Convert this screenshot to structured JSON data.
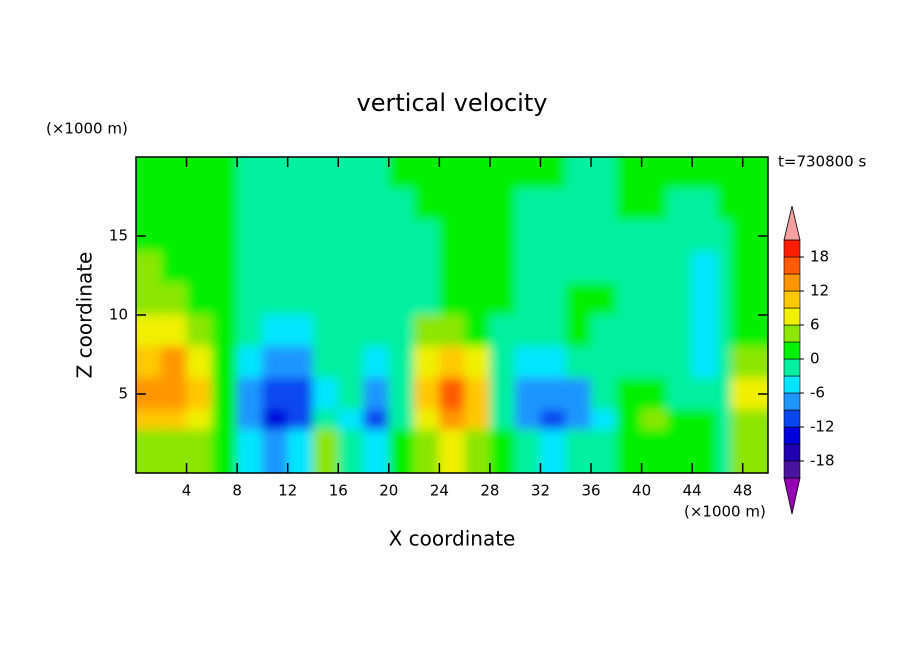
{
  "chart_data": {
    "type": "contour",
    "title": "vertical velocity",
    "annotation": "t=730800 s",
    "x_label": "X coordinate",
    "y_label": "Z coordinate",
    "x_unit": "(×1000 m)",
    "y_unit": "(×1000 m)",
    "xlim": [
      0,
      50
    ],
    "ylim": [
      0,
      20
    ],
    "xticks": [
      4,
      8,
      12,
      16,
      20,
      24,
      28,
      32,
      36,
      40,
      44,
      48
    ],
    "yticks": [
      5,
      10,
      15
    ],
    "x": [
      1,
      3,
      5,
      7,
      9,
      11,
      13,
      15,
      17,
      19,
      21,
      23,
      25,
      27,
      29,
      31,
      33,
      35,
      37,
      39,
      41,
      43,
      45,
      47,
      49
    ],
    "y": [
      19,
      17,
      15,
      13,
      11,
      9,
      7,
      5,
      3,
      1
    ],
    "values": [
      [
        1,
        1,
        1,
        1,
        -1,
        -1,
        -1,
        -1,
        -1,
        -1,
        1,
        1,
        1,
        1,
        1,
        1,
        1,
        -1,
        -1,
        1,
        1,
        1,
        1,
        1,
        1
      ],
      [
        1,
        1,
        1,
        1,
        -1,
        -1,
        -1,
        -1,
        -1,
        -1,
        -1,
        1,
        1,
        1,
        1,
        -1,
        -1,
        -1,
        -1,
        1,
        1,
        -1,
        -1,
        1,
        1
      ],
      [
        2,
        1,
        1,
        1,
        -1,
        -1,
        -1,
        -1,
        -1,
        -1,
        -1,
        -1,
        1,
        1,
        1,
        -1,
        -1,
        -1,
        -1,
        -1,
        -1,
        -1,
        -1,
        -1,
        1
      ],
      [
        4,
        2,
        1,
        1,
        -1,
        -1,
        -1,
        -1,
        -1,
        -1,
        -1,
        -1,
        1,
        1,
        1,
        -1,
        -1,
        -1,
        -1,
        -1,
        -1,
        -1,
        -4,
        -1,
        1
      ],
      [
        5,
        4,
        2,
        1,
        -1,
        -1,
        -2,
        -1,
        -1,
        -1,
        -1,
        -1,
        1,
        1,
        1,
        -1,
        -1,
        1,
        2,
        -1,
        -1,
        -1,
        -4,
        -1,
        1
      ],
      [
        7,
        8,
        5,
        1,
        -2,
        -4,
        -4,
        -2,
        -1,
        -2,
        -1,
        4,
        5,
        1,
        -1,
        -2,
        -1,
        1,
        -1,
        -1,
        -1,
        -1,
        -4,
        -1,
        2
      ],
      [
        10,
        13,
        8,
        2,
        -5,
        -8,
        -8,
        -3,
        -1,
        -4,
        -1,
        8,
        11,
        6,
        -2,
        -5,
        -4,
        -2,
        -1,
        -1,
        -1,
        -2,
        -4,
        -2,
        4
      ],
      [
        12,
        14,
        10,
        2,
        -8,
        -12,
        -10,
        -4,
        -3,
        -7,
        -2,
        10,
        15,
        10,
        -3,
        -7,
        -8,
        -7,
        -3,
        1,
        2,
        -2,
        -3,
        -1,
        6
      ],
      [
        9,
        10,
        7,
        2,
        -8,
        -13,
        -11,
        -3,
        -6,
        -10,
        -2,
        8,
        13,
        9,
        -2,
        -8,
        -12,
        -8,
        -5,
        1,
        3,
        2,
        1,
        -2,
        5
      ],
      [
        5,
        5,
        3,
        1,
        -5,
        -7,
        -6,
        4,
        -3,
        -6,
        1,
        4,
        6,
        4,
        1,
        -3,
        -6,
        -3,
        -1,
        1,
        2,
        1,
        0,
        -1,
        3
      ]
    ],
    "colorbar": {
      "levels": [
        -21,
        -18,
        -15,
        -12,
        -9,
        -6,
        -3,
        0,
        3,
        6,
        9,
        12,
        15,
        18,
        21
      ],
      "colors": [
        "#4b14a0",
        "#2000b0",
        "#0000dc",
        "#0a46f0",
        "#1e96ff",
        "#00e6ff",
        "#00f0a0",
        "#00f000",
        "#8ce600",
        "#f0f000",
        "#ffc800",
        "#ff9600",
        "#ff5a00",
        "#ff1e00"
      ],
      "under_color": "#9600b4",
      "over_color": "#f5a0a0",
      "ticks": [
        -18,
        -12,
        -6,
        0,
        6,
        12,
        18
      ]
    }
  }
}
